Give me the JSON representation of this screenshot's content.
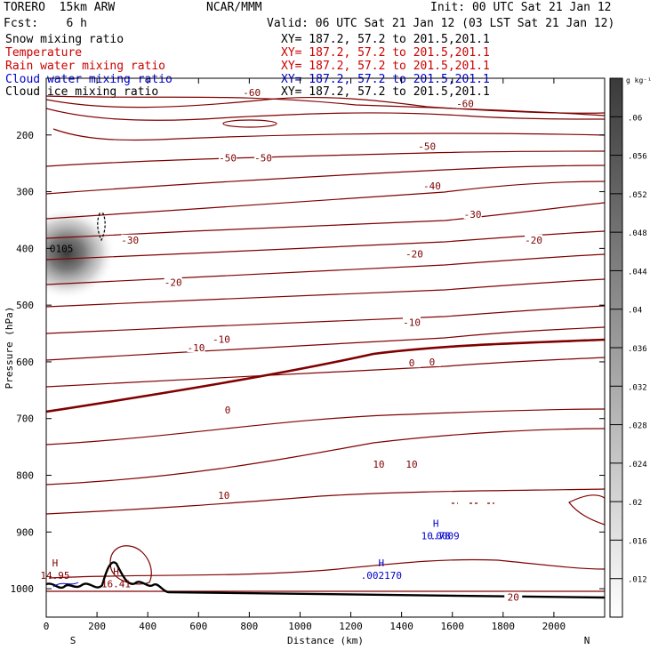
{
  "header": {
    "model": "TORERO  15km ARW",
    "center": "NCAR/MMM",
    "init": "Init: 00 UTC Sat 21 Jan 12",
    "fcst": "Fcst:    6 h",
    "valid": "Valid: 06 UTC Sat 21 Jan 12 (03 LST Sat 21 Jan 12)"
  },
  "fields": [
    {
      "name": "Snow mixing ratio",
      "range": "XY= 187.2, 57.2 to 201.5,201.1",
      "color": "#000000"
    },
    {
      "name": "Temperature",
      "range": "XY= 187.2, 57.2 to 201.5,201.1",
      "color": "#cc0000"
    },
    {
      "name": "Rain water mixing ratio",
      "range": "XY= 187.2, 57.2 to 201.5,201.1",
      "color": "#cc0000"
    },
    {
      "name": "Cloud water mixing ratio",
      "range": "XY= 187.2, 57.2 to 201.5,201.1",
      "color": "#0000cc"
    },
    {
      "name": "Cloud ice mixing ratio",
      "range": "XY= 187.2, 57.2 to 201.5,201.1",
      "color": "#000000"
    }
  ],
  "chart_data": {
    "type": "contour cross-section",
    "xlabel": "Distance (km)",
    "ylabel": "Pressure (hPa)",
    "xlim": [
      0,
      2200
    ],
    "ylim": [
      1050,
      100
    ],
    "xticks": [
      0,
      200,
      400,
      600,
      800,
      1000,
      1200,
      1400,
      1600,
      1800,
      2000
    ],
    "yticks": [
      200,
      300,
      400,
      500,
      600,
      700,
      800,
      900,
      1000
    ],
    "left_end": "S",
    "right_end": "N",
    "colorbar": {
      "unit": "g kg⁻¹",
      "min": 0.008,
      "max": 0.064,
      "ticks": [
        0.012,
        0.016,
        0.02,
        0.024,
        0.028,
        0.032,
        0.036,
        0.04,
        0.044,
        0.048,
        0.052,
        0.056,
        0.06
      ]
    },
    "temperature_contours": [
      {
        "value": -60,
        "labels": [
          {
            "x": 810,
            "p": 125,
            "text": "-60"
          },
          {
            "x": 1650,
            "p": 145,
            "text": "-60"
          }
        ]
      },
      {
        "value": -50,
        "labels": [
          {
            "x": 715,
            "p": 240,
            "text": "-50"
          },
          {
            "x": 855,
            "p": 240,
            "text": "-50"
          },
          {
            "x": 1500,
            "p": 220,
            "text": "-50"
          }
        ]
      },
      {
        "value": -40,
        "labels": [
          {
            "x": 1520,
            "p": 290,
            "text": "-40"
          }
        ]
      },
      {
        "value": -30,
        "labels": [
          {
            "x": 330,
            "p": 385,
            "text": "-30"
          },
          {
            "x": 1680,
            "p": 340,
            "text": "-30"
          }
        ]
      },
      {
        "value": -20,
        "labels": [
          {
            "x": 500,
            "p": 460,
            "text": "-20"
          },
          {
            "x": 1450,
            "p": 410,
            "text": "-20"
          },
          {
            "x": 1920,
            "p": 385,
            "text": "-20"
          }
        ]
      },
      {
        "value": -10,
        "labels": [
          {
            "x": 590,
            "p": 575,
            "text": "-10"
          },
          {
            "x": 690,
            "p": 560,
            "text": "-10"
          },
          {
            "x": 1440,
            "p": 530,
            "text": "-10"
          }
        ]
      },
      {
        "value": 0,
        "labels": [
          {
            "x": 715,
            "p": 685,
            "text": "0"
          },
          {
            "x": 1440,
            "p": 602,
            "text": "0"
          },
          {
            "x": 1520,
            "p": 600,
            "text": "0"
          }
        ]
      },
      {
        "value": 10,
        "labels": [
          {
            "x": 1310,
            "p": 780,
            "text": "10"
          },
          {
            "x": 1440,
            "p": 780,
            "text": "10"
          },
          {
            "x": 700,
            "p": 835,
            "text": "10"
          }
        ]
      },
      {
        "value": 20,
        "labels": [
          {
            "x": 1840,
            "p": 1015,
            "text": "20"
          }
        ]
      }
    ],
    "snow_max": {
      "x": 60,
      "p": 400,
      "value": "0105",
      "text": "0105"
    },
    "extrema": [
      {
        "type": "H",
        "field": "Temperature",
        "x": 35,
        "p": 970,
        "label": "H",
        "value": "14.95"
      },
      {
        "type": "H",
        "field": "Temperature",
        "x": 275,
        "p": 985,
        "label": "H",
        "value": "16.41"
      },
      {
        "type": "H",
        "field": "Cloud water",
        "x": 1320,
        "p": 970,
        "label": "H",
        "value": ".002170"
      },
      {
        "type": "H",
        "field": "Cloud water",
        "x": 1535,
        "p": 900,
        "label": "H",
        "value": "10.78"
      },
      {
        "type": "H",
        "field": "Cloud water",
        "x": 1535,
        "p": 900,
        "label": "H",
        "value": ".0009"
      }
    ]
  }
}
